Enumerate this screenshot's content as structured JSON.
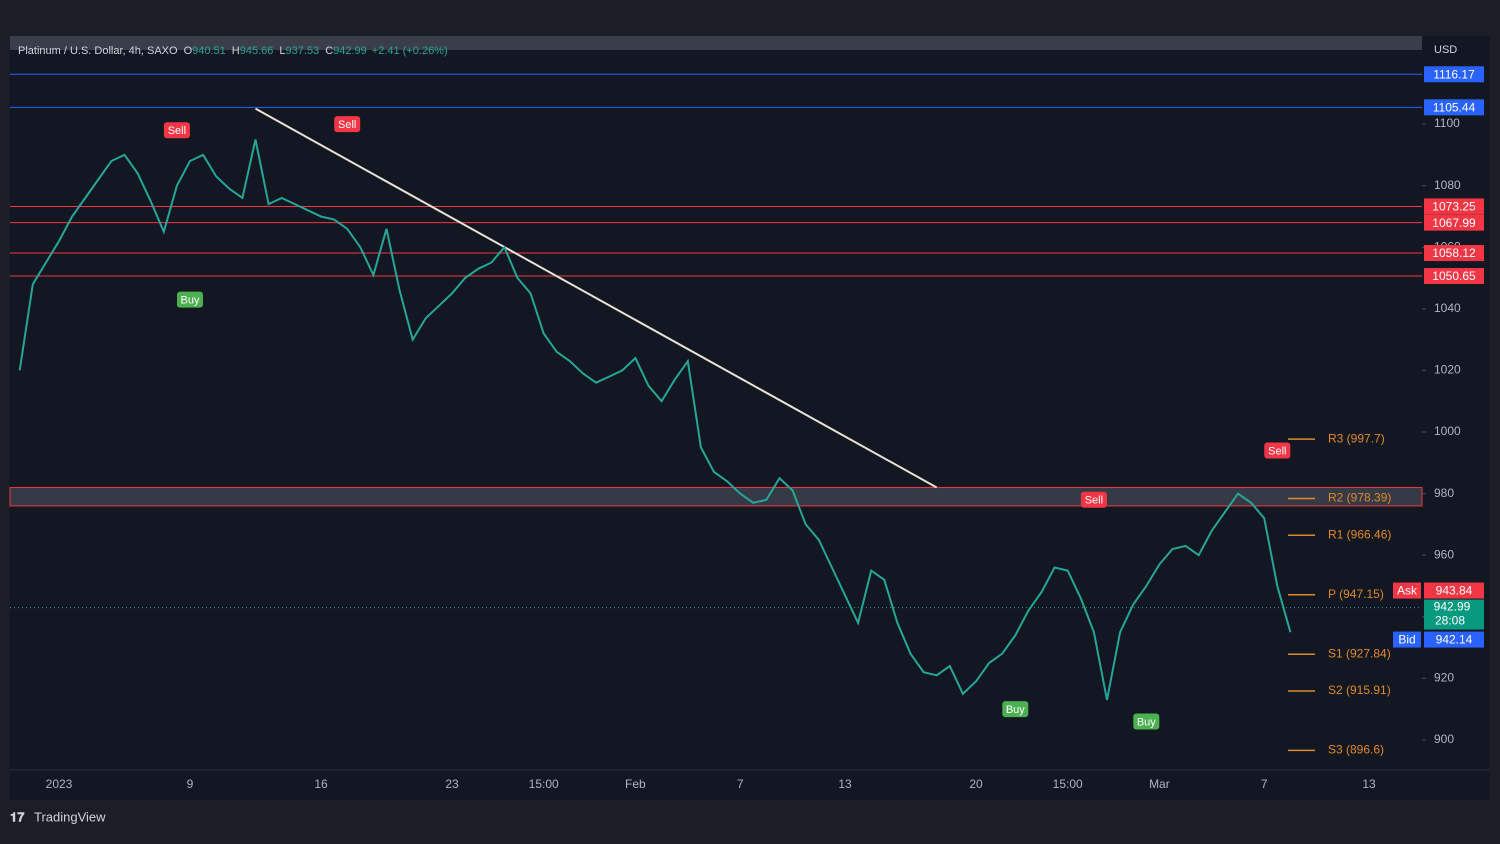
{
  "chart_data": {
    "type": "line",
    "title": "Platinum / U.S. Dollar, 4h, SAXO",
    "ohlc": [
      {
        "key": "O",
        "value": "940.51"
      },
      {
        "key": "H",
        "value": "945.66"
      },
      {
        "key": "L",
        "value": "937.53"
      },
      {
        "key": "C",
        "value": "942.99"
      }
    ],
    "change": "+2.41 (+0.26%)",
    "currency": "USD",
    "categories": [
      null,
      null,
      null,
      "2023",
      null,
      null,
      null,
      null,
      null,
      null,
      null,
      null,
      null,
      "9",
      null,
      null,
      null,
      null,
      null,
      null,
      null,
      null,
      null,
      "16",
      null,
      null,
      null,
      null,
      null,
      null,
      null,
      null,
      null,
      "23",
      null,
      null,
      null,
      null,
      null,
      null,
      "15:00",
      null,
      null,
      null,
      null,
      null,
      null,
      "Feb",
      null,
      null,
      null,
      null,
      null,
      null,
      null,
      "7",
      null,
      null,
      null,
      null,
      null,
      null,
      null,
      "13",
      null,
      null,
      null,
      null,
      null,
      null,
      null,
      null,
      null,
      "20",
      null,
      null,
      null,
      null,
      null,
      null,
      "15:00",
      null,
      null,
      null,
      null,
      null,
      null,
      "Mar",
      null,
      null,
      null,
      null,
      null,
      null,
      null,
      "7",
      null,
      null,
      null,
      null,
      null,
      null,
      null,
      "13",
      null,
      null,
      null
    ],
    "values": [
      1020,
      1048,
      1055,
      1062,
      1070,
      1076,
      1082,
      1088,
      1090,
      1084,
      1075,
      1065,
      1080,
      1088,
      1090,
      1083,
      1079,
      1076,
      1095,
      1074,
      1076,
      1074,
      1072,
      1070,
      1069,
      1066,
      1060,
      1051,
      1066,
      1046,
      1030,
      1037,
      1041,
      1045,
      1050,
      1053,
      1055,
      1060,
      1050,
      1045,
      1032,
      1026,
      1023,
      1019,
      1016,
      1018,
      1020,
      1024,
      1015,
      1010,
      1017,
      1023,
      995,
      987,
      984,
      980,
      977,
      978,
      985,
      981,
      970,
      965,
      956,
      947,
      938,
      955,
      952,
      938,
      928,
      922,
      921,
      924,
      915,
      919,
      925,
      928,
      934,
      942,
      948,
      956,
      955,
      946,
      935,
      913,
      935,
      944,
      950,
      957,
      962,
      963,
      960,
      968,
      974,
      980,
      977,
      972,
      950,
      935,
      null,
      null,
      null,
      null,
      null,
      null,
      null,
      null,
      null
    ],
    "color": "#26a69a",
    "ylim": [
      880.5,
      1127.3
    ],
    "yticks": [
      900,
      920,
      940,
      960,
      980,
      1000,
      1020,
      1040,
      1060,
      1080,
      1100
    ],
    "levels": [
      {
        "value": 1116.17,
        "color": "#2962ff"
      },
      {
        "value": 1105.44,
        "color": "#2962ff"
      },
      {
        "value": 1073.25,
        "color": "#f23645"
      },
      {
        "value": 1067.99,
        "color": "#f23645"
      },
      {
        "value": 1058.12,
        "color": "#f23645"
      },
      {
        "value": 1050.65,
        "color": "#f23645"
      }
    ],
    "zone": [
      976,
      982
    ],
    "trendline": {
      "from_index": 18,
      "from": 1105,
      "to_index": 70,
      "to": 982
    },
    "pivots": [
      {
        "value": 997.7,
        "label": "R3 (997.7)"
      },
      {
        "value": 978.39,
        "label": "R2 (978.39)"
      },
      {
        "value": 966.46,
        "label": "R1 (966.46)"
      },
      {
        "value": 947.15,
        "label": "P (947.15)"
      },
      {
        "value": 927.84,
        "label": "S1 (927.84)"
      },
      {
        "value": 915.91,
        "label": "S2 (915.91)"
      },
      {
        "value": 896.6,
        "label": "S3 (896.6)"
      }
    ],
    "pivot_color": "#e0892a",
    "signals": [
      {
        "text": "Sell",
        "index": 12,
        "value": 1098,
        "color": "#f23645"
      },
      {
        "text": "Buy",
        "index": 13,
        "value": 1043,
        "color": "#4caf50"
      },
      {
        "text": "Sell",
        "index": 25,
        "value": 1100,
        "color": "#f23645"
      },
      {
        "text": "Buy",
        "index": 76,
        "value": 910,
        "color": "#4caf50"
      },
      {
        "text": "Sell",
        "index": 82,
        "value": 978,
        "color": "#f23645"
      },
      {
        "text": "Buy",
        "index": 86,
        "value": 906,
        "color": "#4caf50"
      },
      {
        "text": "Sell",
        "index": 96,
        "value": 994,
        "color": "#f23645"
      }
    ],
    "quote": {
      "ask_label": "Ask",
      "ask": 943.84,
      "last": 942.99,
      "countdown": "28:08",
      "bid_label": "Bid",
      "bid": 942.14
    },
    "brand": "TradingView"
  }
}
